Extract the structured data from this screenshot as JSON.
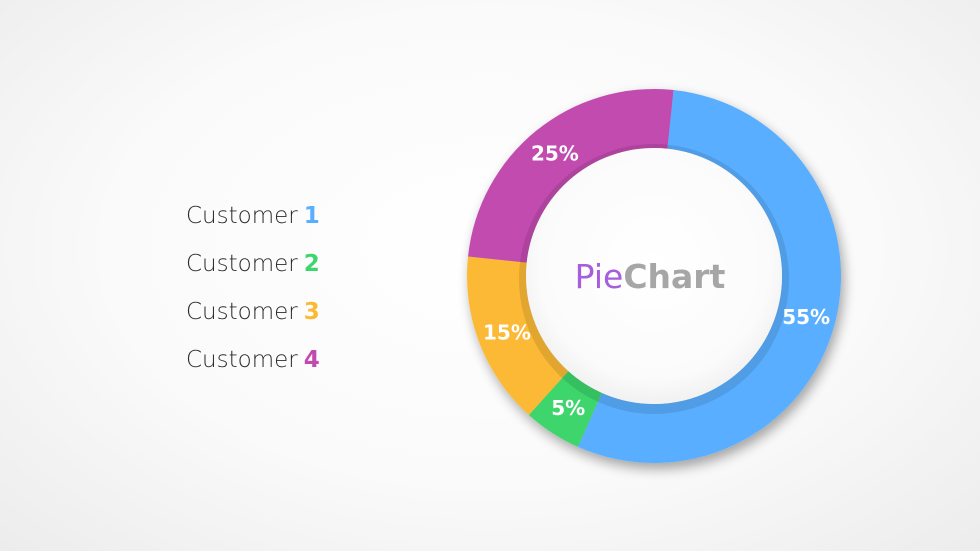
{
  "chart_data": {
    "type": "pie",
    "donut": true,
    "title_parts": [
      {
        "text": "Pie",
        "color": "#a65fdc",
        "weight": "400"
      },
      {
        "text": "Chart",
        "color": "#a6a6a6",
        "weight": "700"
      }
    ],
    "series": [
      {
        "name_prefix": "Customer",
        "name_suffix": "1",
        "value": 55,
        "label": "55%",
        "color": "#5aaeff"
      },
      {
        "name_prefix": "Customer",
        "name_suffix": "2",
        "value": 5,
        "label": "5%",
        "color": "#3ed56c"
      },
      {
        "name_prefix": "Customer",
        "name_suffix": "3",
        "value": 15,
        "label": "15%",
        "color": "#fbb934"
      },
      {
        "name_prefix": "Customer",
        "name_suffix": "4",
        "value": 25,
        "label": "25%",
        "color": "#c24baf"
      }
    ],
    "legend_position": "left"
  }
}
